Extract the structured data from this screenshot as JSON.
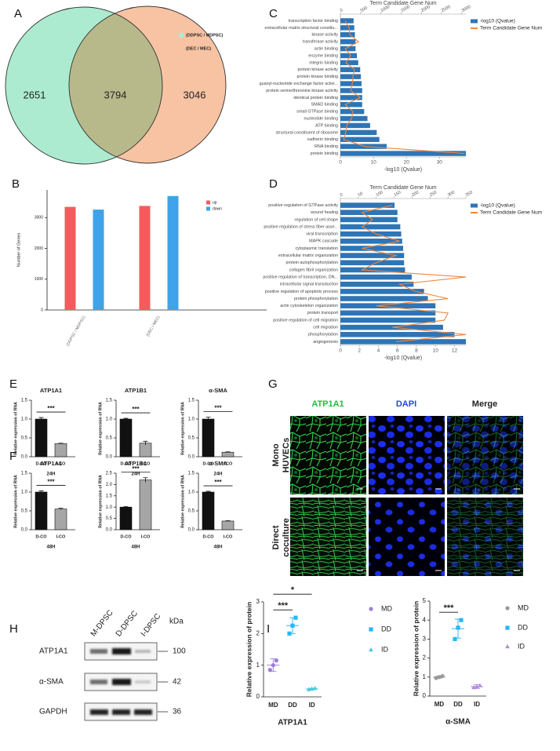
{
  "chart_data": [
    {
      "type": "venn",
      "panel": "A",
      "sets": [
        {
          "name": "(DDPSC / MDPSC)",
          "color": "#acebd0"
        },
        {
          "name": "(DEC / MEC)",
          "color": "#f7c3a2"
        }
      ],
      "overlap_color": "#b8b98b",
      "values": [
        2651,
        3794,
        3046
      ]
    },
    {
      "type": "bar",
      "panel": "B",
      "ylabel": "Number of Genes",
      "categories": [
        "(DDPSC / MDPSC)",
        "(DEC / MEC)"
      ],
      "series": [
        {
          "name": "up",
          "color": "#f25c5c",
          "values": [
            3350,
            3380
          ]
        },
        {
          "name": "down",
          "color": "#3ea3e8",
          "values": [
            3260,
            3700
          ]
        }
      ],
      "ylim": [
        0,
        3900
      ],
      "yticks": [
        0,
        1000,
        2000,
        3000
      ]
    },
    {
      "type": "barh",
      "panel": "C",
      "x2label": "Term Candidate Gene Num",
      "xlabel": "-log10 (Qvalue)",
      "categories": [
        "transcription factor binding",
        "extracellular matrix structural constitu...",
        "kinase activity",
        "transferase activity",
        "actin binding",
        "enzyme binding",
        "integrin binding",
        "protein kinase activity",
        "protein kinase binding",
        "guanyl-nucleotide exchange factor activi...",
        "protein serine/threonine kinase activity",
        "identical protein binding",
        "SMAD binding",
        "small GTPase binding",
        "nucleotide binding",
        "ATP binding",
        "structural constituent of ribosome",
        "cadherin binding",
        "RNA binding",
        "protein binding"
      ],
      "series": [
        {
          "name": "-log10 (Qvalue)",
          "color": "#2e75b6",
          "values": [
            4.0,
            4.2,
            4.4,
            4.6,
            4.6,
            5.0,
            5.4,
            6.0,
            6.2,
            6.4,
            6.6,
            6.6,
            6.6,
            7.2,
            8.2,
            9.0,
            11.0,
            11.8,
            14.0,
            38.0
          ]
        },
        {
          "name": "Term Candidate Gene Num",
          "color": "#f0883e",
          "axis": "x2",
          "values": [
            120,
            215,
            235,
            450,
            120,
            255,
            135,
            350,
            310,
            295,
            255,
            490,
            120,
            310,
            275,
            155,
            135,
            80,
            605,
            3070
          ]
        }
      ],
      "xlim": [
        0,
        38
      ],
      "xticks": [
        0,
        10,
        20,
        30
      ],
      "x2lim": [
        0,
        3100
      ],
      "x2ticks": [
        0,
        500,
        1000,
        1500,
        2000,
        2500,
        3000
      ]
    },
    {
      "type": "barh",
      "panel": "D",
      "x2label": "Term Candidate Gene Num",
      "xlabel": "-log10 (Qvalue)",
      "categories": [
        "positive regulation of GTPase activity",
        "wound healing",
        "regulation of cell shape",
        "positive regulation of stress fiber asse...",
        "viral transcription",
        "MAPK cascade",
        "cytoplasmic translation",
        "extracellular matrix organization",
        "protein autophosphorylation",
        "collagen fibril organization",
        "positive regulation of transcription, DN...",
        "intracellular signal transduction",
        "positive regulation of apoptotic process",
        "protein phosphorylation",
        "actin cytoskeleton organization",
        "protein transport",
        "positive regulation of cell migration",
        "cell migration",
        "phosphorylation",
        "angiogenesis"
      ],
      "series": [
        {
          "name": "-log10 (Qvalue)",
          "color": "#2e75b6",
          "values": [
            5.7,
            6.0,
            6.0,
            6.3,
            6.4,
            6.5,
            6.6,
            6.7,
            6.7,
            6.8,
            7.5,
            7.7,
            8.8,
            9.2,
            10.0,
            10.0,
            10.0,
            10.8,
            12.0,
            13.2
          ]
        },
        {
          "name": "Term Candidate Gene Num",
          "color": "#f0883e",
          "axis": "x2",
          "values": [
            145,
            60,
            90,
            60,
            100,
            165,
            60,
            155,
            100,
            60,
            350,
            165,
            210,
            300,
            100,
            300,
            290,
            145,
            350,
            155
          ]
        }
      ],
      "xlim": [
        0,
        13.2
      ],
      "xticks": [
        0,
        2,
        4,
        6,
        8,
        10,
        12
      ],
      "x2lim": [
        0,
        350
      ],
      "x2ticks": [
        0,
        50,
        100,
        150,
        200,
        250,
        300,
        350
      ]
    },
    {
      "type": "bar",
      "panel": "E",
      "title": "ATP1A1",
      "ylabel": "Relative expression of RNA",
      "xlabel": "24H",
      "categories": [
        "D-CO",
        "I-CO"
      ],
      "colors": [
        "#111111",
        "#a6a6a6"
      ],
      "values": [
        1.0,
        0.35
      ],
      "errors": [
        0.04,
        0.01
      ],
      "significance": "***",
      "ylim": [
        0,
        1.5
      ],
      "yticks": [
        {
          "value": 0,
          "label": "0.0"
        },
        {
          "value": 0.5,
          "label": "0.5"
        },
        {
          "value": 1,
          "label": "1.0"
        },
        {
          "value": 1.5,
          "label": "1.5"
        }
      ]
    },
    {
      "type": "bar",
      "title": "ATP1B1",
      "ylabel": "Relative expression of RNA",
      "xlabel": "24H",
      "categories": [
        "D-CO",
        "I-CO"
      ],
      "colors": [
        "#111111",
        "#a6a6a6"
      ],
      "values": [
        1.0,
        0.36
      ],
      "errors": [
        0.02,
        0.05
      ],
      "significance": "***",
      "ylim": [
        0,
        1.5
      ],
      "yticks": [
        {
          "value": 0,
          "label": "0.0"
        },
        {
          "value": 0.5,
          "label": "0.5"
        },
        {
          "value": 1,
          "label": "1.0"
        },
        {
          "value": 1.5,
          "label": "1.5"
        }
      ]
    },
    {
      "type": "bar",
      "title": "α-SMA",
      "ylabel": "Relative expression of RNA",
      "xlabel": "24H",
      "categories": [
        "D-CO",
        "I-CO"
      ],
      "colors": [
        "#111111",
        "#a6a6a6"
      ],
      "values": [
        1.0,
        0.12
      ],
      "errors": [
        0.05,
        0.01
      ],
      "significance": "***",
      "ylim": [
        0,
        1.5
      ],
      "yticks": [
        {
          "value": 0,
          "label": "0.0"
        },
        {
          "value": 0.5,
          "label": "0.5"
        },
        {
          "value": 1,
          "label": "1.0"
        },
        {
          "value": 1.5,
          "label": "1.5"
        }
      ]
    },
    {
      "type": "bar",
      "panel": "F",
      "title": "ATP1A1",
      "ylabel": "Relative expression of RNA",
      "xlabel": "48H",
      "categories": [
        "D-CO",
        "I-CO"
      ],
      "colors": [
        "#111111",
        "#a6a6a6"
      ],
      "values": [
        1.0,
        0.55
      ],
      "errors": [
        0.03,
        0.02
      ],
      "significance": "***",
      "ylim": [
        0,
        1.5
      ],
      "yticks": [
        {
          "value": 0,
          "label": "0.0"
        },
        {
          "value": 0.5,
          "label": "0.5"
        },
        {
          "value": 1,
          "label": "1.0"
        },
        {
          "value": 1.5,
          "label": "1.5"
        }
      ]
    },
    {
      "type": "bar",
      "title": "ATP1B1",
      "ylabel": "Relative expression of RNA",
      "xlabel": "48H",
      "categories": [
        "D-CO",
        "I-CO"
      ],
      "colors": [
        "#111111",
        "#a6a6a6"
      ],
      "values": [
        1.0,
        2.2
      ],
      "errors": [
        0.02,
        0.1
      ],
      "significance": "***",
      "ylim": [
        0,
        2.5
      ],
      "yticks": [
        {
          "value": 0,
          "label": "0.0"
        },
        {
          "value": 0.5,
          "label": "0.5"
        },
        {
          "value": 1,
          "label": "1.0"
        },
        {
          "value": 1.5,
          "label": "1.5"
        },
        {
          "value": 2,
          "label": "2.0"
        },
        {
          "value": 2.5,
          "label": "2.5"
        }
      ]
    },
    {
      "type": "bar",
      "title": "α-SMA",
      "ylabel": "Relative expression of RNA",
      "xlabel": "48H",
      "categories": [
        "D-CO",
        "I-CO"
      ],
      "colors": [
        "#111111",
        "#a6a6a6"
      ],
      "values": [
        1.0,
        0.23
      ],
      "errors": [
        0.02,
        0.01
      ],
      "significance": "***",
      "ylim": [
        0,
        1.5
      ],
      "yticks": [
        {
          "value": 0,
          "label": "0.0"
        },
        {
          "value": 0.5,
          "label": "0.5"
        },
        {
          "value": 1,
          "label": "1.0"
        },
        {
          "value": 1.5,
          "label": "1.5"
        }
      ]
    },
    {
      "type": "dot",
      "panel": "I",
      "ylabel": "Relative expression of protein",
      "xlabel": "ATP1A1",
      "categories": [
        "MD",
        "DD",
        "ID"
      ],
      "series": [
        {
          "name": "MD",
          "color": "#9a7fd6",
          "marker": "circle",
          "values": [
            0.85,
            1.0,
            1.15
          ],
          "mean": 1.0,
          "error": 0.2
        },
        {
          "name": "DD",
          "color": "#29b6f6",
          "marker": "square",
          "values": [
            2.0,
            2.25,
            2.5
          ],
          "mean": 2.25,
          "error": 0.25
        },
        {
          "name": "ID",
          "color": "#4dc9d9",
          "marker": "triangle",
          "values": [
            0.23,
            0.25,
            0.27
          ],
          "mean": 0.25,
          "error": 0.02
        }
      ],
      "ylim": [
        0,
        3
      ],
      "yticks": [
        0,
        1,
        2,
        3
      ],
      "significance": [
        {
          "label": "***",
          "groups": [
            "MD",
            "DD"
          ]
        },
        {
          "label": "*",
          "groups": [
            "MD",
            "ID"
          ]
        }
      ]
    },
    {
      "type": "dot",
      "ylabel": "Relative expression of protein",
      "xlabel": "α-SMA",
      "categories": [
        "MD",
        "DD",
        "ID"
      ],
      "series": [
        {
          "name": "MD",
          "color": "#9a9a9a",
          "marker": "circle",
          "values": [
            0.95,
            1.0,
            1.05
          ],
          "mean": 1.0,
          "error": 0.05
        },
        {
          "name": "DD",
          "color": "#29b6f6",
          "marker": "square",
          "values": [
            3.0,
            3.6,
            4.0
          ],
          "mean": 3.55,
          "error": 0.5
        },
        {
          "name": "ID",
          "color": "#b38be0",
          "marker": "triangle",
          "values": [
            0.45,
            0.5,
            0.55
          ],
          "mean": 0.5,
          "error": 0.1
        }
      ],
      "ylim": [
        0,
        5
      ],
      "yticks": [
        0,
        1,
        2,
        3,
        4,
        5
      ],
      "significance": [
        {
          "label": "***",
          "groups": [
            "MD",
            "DD"
          ]
        }
      ]
    }
  ],
  "microscopy": {
    "panel": "G",
    "columns": [
      "ATP1A1",
      "DAPI",
      "Merge"
    ],
    "rows": [
      [
        "Mono",
        "HUVECs"
      ],
      [
        "Direct",
        "coculture"
      ]
    ]
  },
  "western_blot": {
    "panel": "H",
    "columns": [
      "M-DPSC",
      "D-DPSC",
      "I-DPSC"
    ],
    "unit": "kDa",
    "rows": [
      {
        "name": "ATP1A1",
        "kda": 100
      },
      {
        "name": "α-SMA",
        "kda": 42
      },
      {
        "name": "GAPDH",
        "kda": 36
      }
    ]
  }
}
